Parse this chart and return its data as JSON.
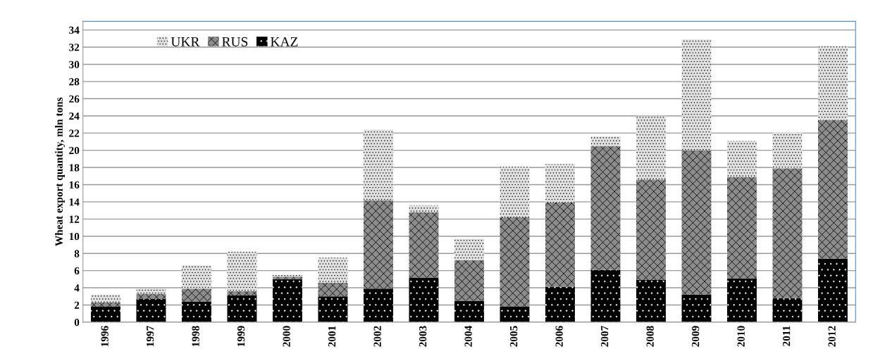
{
  "chart_data": {
    "type": "bar",
    "stacked": true,
    "ylabel": "Wheat export quantity, mln tons",
    "categories": [
      "1996",
      "1997",
      "1998",
      "1999",
      "2000",
      "2001",
      "2002",
      "2003",
      "2004",
      "2005",
      "2006",
      "2007",
      "2008",
      "2009",
      "2010",
      "2011",
      "2012"
    ],
    "series": [
      {
        "name": "KAZ",
        "color": "#000000",
        "values": [
          1.8,
          2.7,
          2.4,
          3.1,
          5.0,
          3.0,
          3.9,
          5.2,
          2.5,
          1.8,
          4.1,
          6.1,
          4.9,
          3.2,
          5.1,
          2.8,
          7.4
        ]
      },
      {
        "name": "RUS",
        "color": "#8c8c8c",
        "values": [
          0.5,
          0.6,
          1.5,
          0.5,
          0.3,
          1.6,
          10.3,
          7.6,
          4.7,
          10.4,
          9.8,
          14.4,
          11.7,
          16.8,
          11.8,
          15.1,
          16.1
        ]
      },
      {
        "name": "UKR",
        "color": "#e0e0e0",
        "values": [
          0.9,
          0.6,
          2.7,
          4.6,
          0.2,
          2.9,
          8.2,
          0.8,
          2.5,
          5.9,
          4.5,
          1.1,
          7.4,
          12.9,
          4.2,
          4.2,
          8.6
        ]
      }
    ],
    "ylim": [
      0,
      35
    ],
    "yticks": [
      0,
      2,
      4,
      6,
      8,
      10,
      12,
      14,
      16,
      18,
      20,
      22,
      24,
      26,
      28,
      30,
      32,
      34
    ],
    "grid": "y",
    "legend": "top left"
  }
}
